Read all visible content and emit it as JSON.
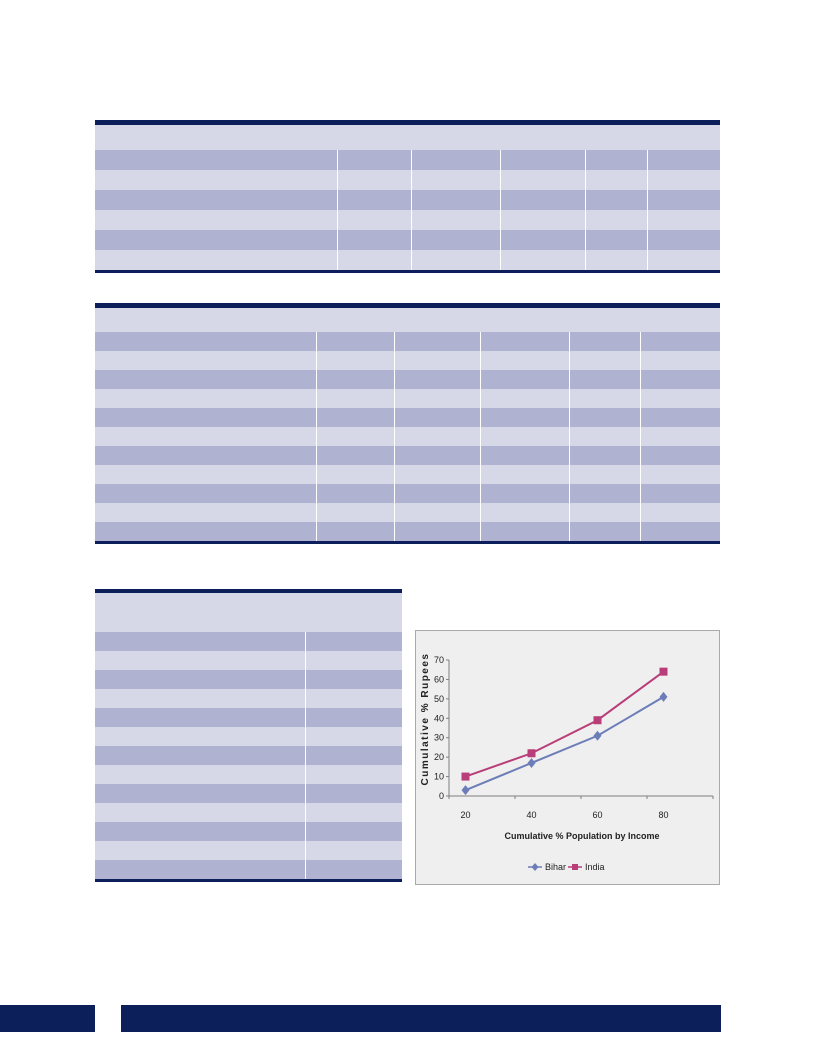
{
  "colors": {
    "rule": "#0c1f5a",
    "row_dark": "#b0b2d2",
    "row_light": "#d6d7e7",
    "bihar": "#6d7db8",
    "india": "#b83d78"
  },
  "table1": {
    "row_count": 7,
    "column_count": 6
  },
  "table2": {
    "row_count": 11,
    "column_count": 6
  },
  "table3": {
    "row_count": 13,
    "column_count": 2
  },
  "chart_data": {
    "type": "line",
    "title": "",
    "xlabel": "Cumulative % Population by Income",
    "ylabel": "Cumulative % Rupees",
    "x": [
      20,
      40,
      60,
      80
    ],
    "series": [
      {
        "name": "Bihar",
        "values": [
          3,
          17,
          31,
          51
        ],
        "color": "#6d7db8",
        "marker": "diamond"
      },
      {
        "name": "India",
        "values": [
          10,
          22,
          39,
          64
        ],
        "color": "#b83d78",
        "marker": "square"
      }
    ],
    "ylim": [
      0,
      70
    ],
    "yticks": [
      0,
      10,
      20,
      30,
      40,
      50,
      60,
      70
    ],
    "xticks": [
      20,
      40,
      60,
      80
    ],
    "legend": "bottom",
    "grid": false
  }
}
